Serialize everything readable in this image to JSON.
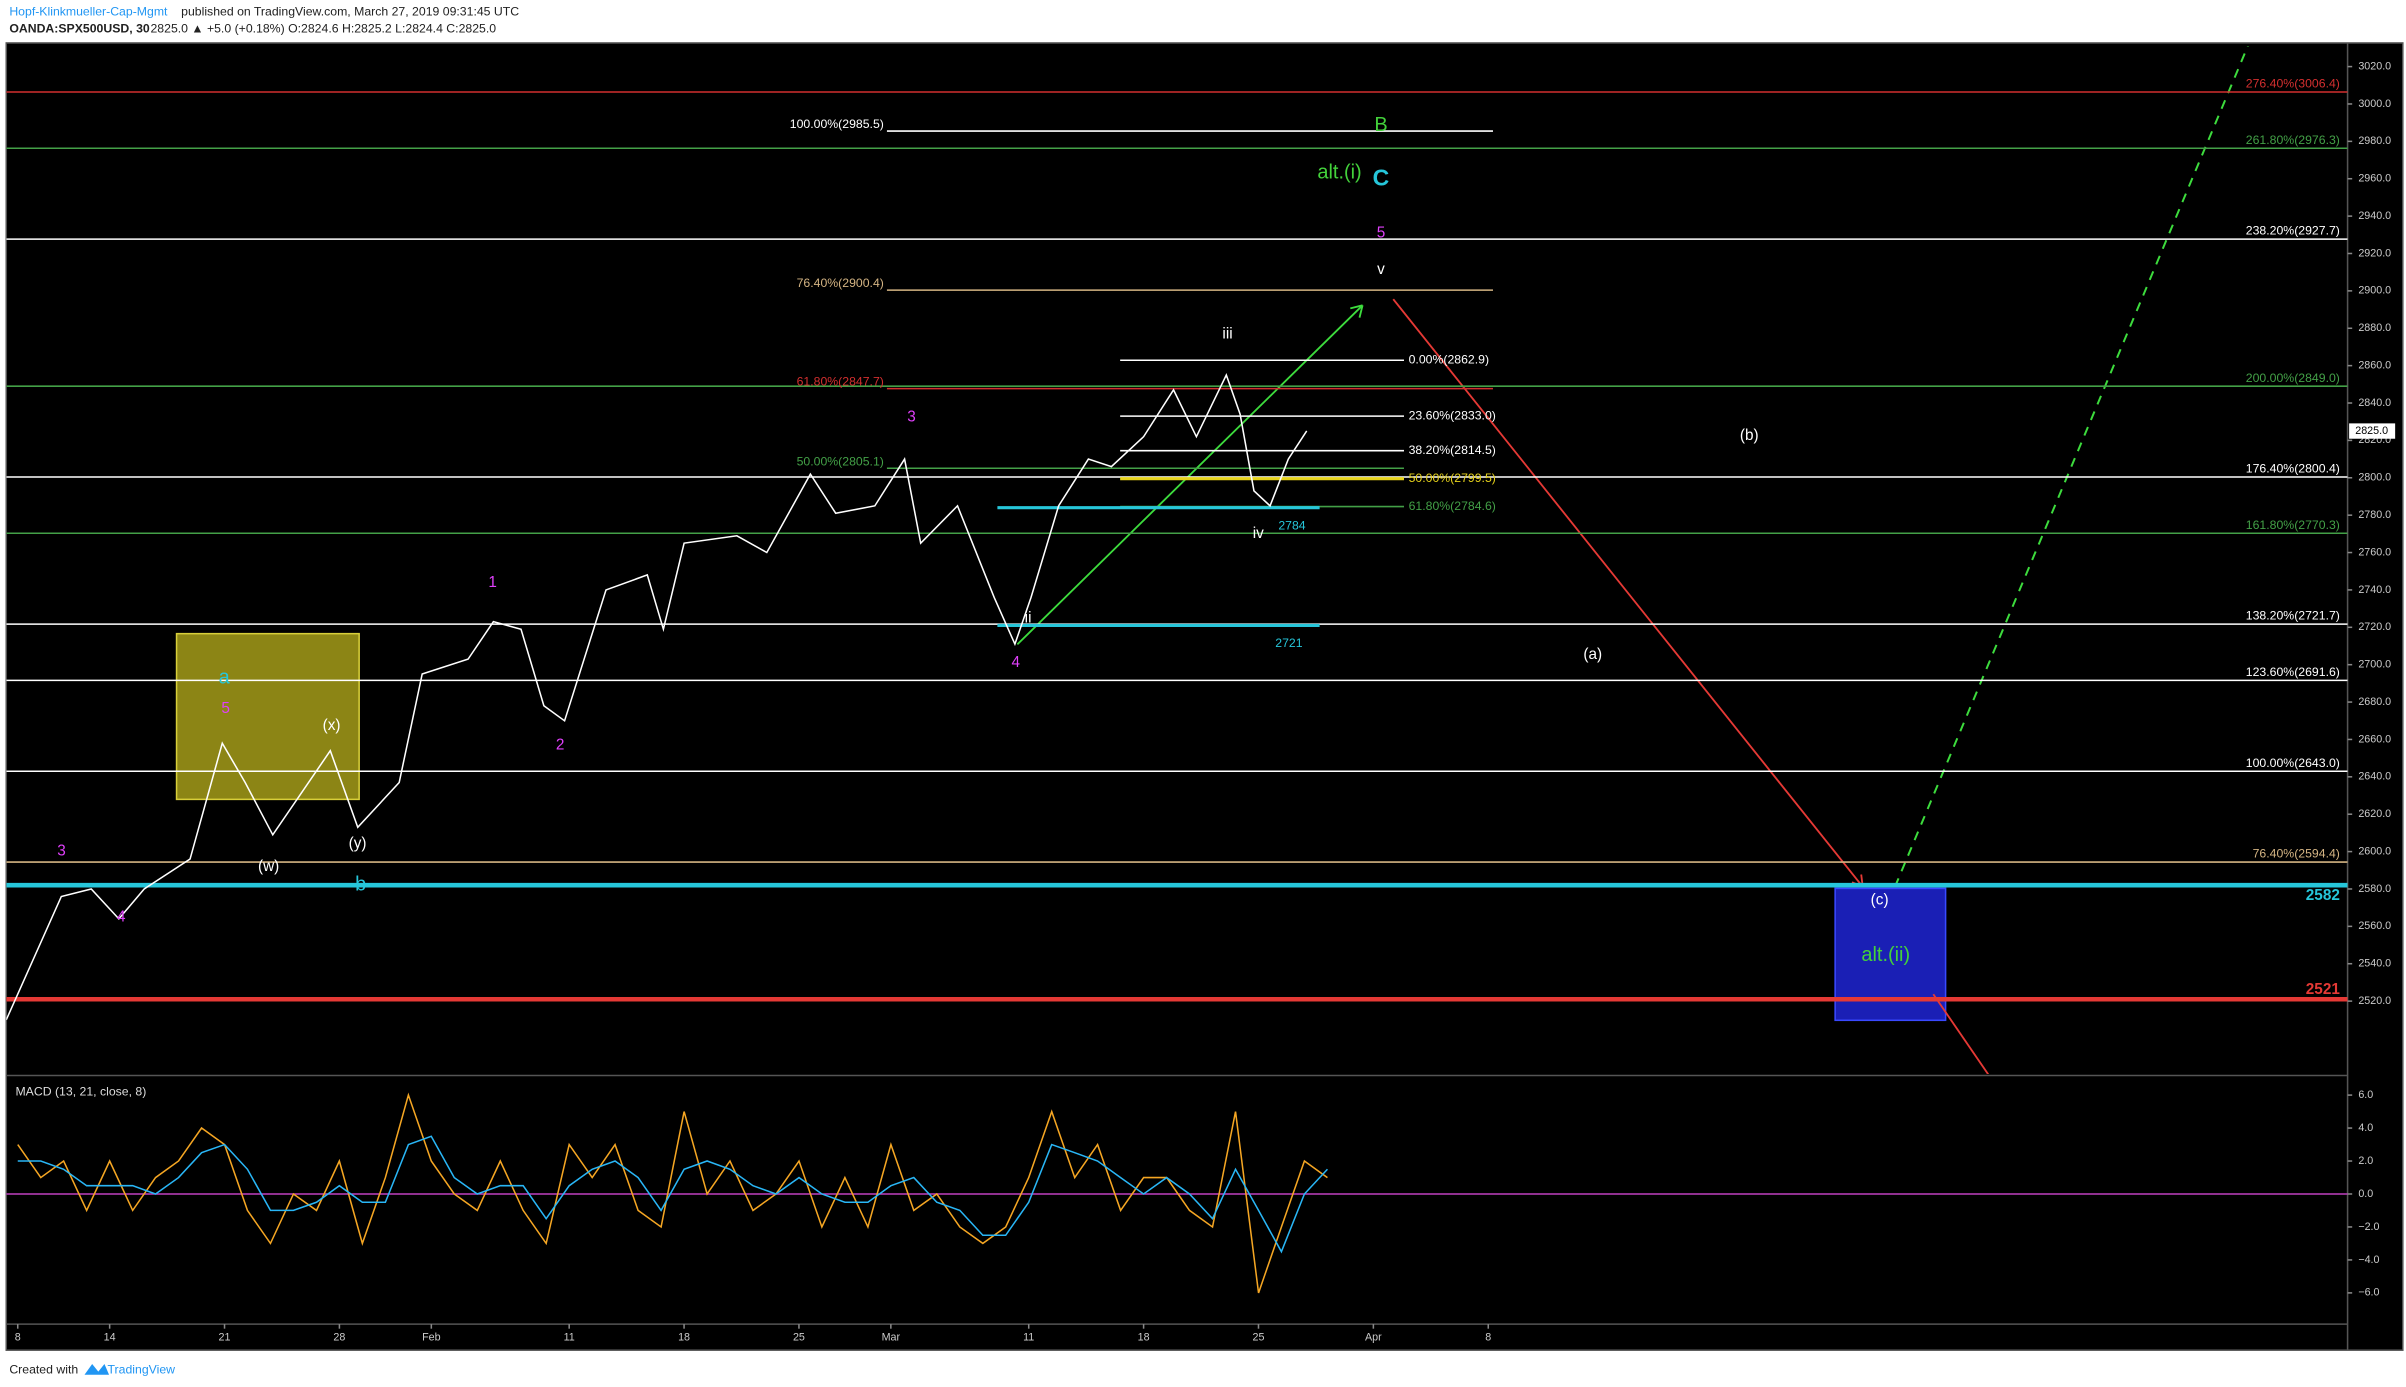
{
  "header": {
    "author": "Hopf-Klinkmueller-Cap-Mgmt",
    "published": "published on TradingView.com, March 27, 2019 09:31:45 UTC",
    "symbol": "OANDA:SPX500USD, 30",
    "ohlc": "2825.0  ▲ +5.0 (+0.18%)  O:2824.6  H:2825.2  L:2824.4  C:2825.0"
  },
  "footer": {
    "created": "Created with",
    "brand": "TradingView"
  },
  "chart_data": [
    {
      "type": "line",
      "color": "#ffffff",
      "x": [
        -0.5,
        1.9,
        3.2,
        4.4,
        5.5,
        7.5,
        8.9,
        9.9,
        11.1,
        13.6,
        14.8,
        16.6,
        17.6,
        19.6,
        20.7,
        21.9,
        22.9,
        23.8,
        25.6,
        27.4,
        28.1,
        29.0,
        31.3,
        32.6,
        34.5,
        35.6,
        37.3,
        38.6,
        39.3,
        40.9,
        42.5,
        43.4,
        44.1,
        45.3,
        46.6,
        47.6,
        49.0,
        50.3,
        51.3,
        52.6,
        53.2,
        53.8,
        54.5,
        55.3,
        56.1
      ],
      "values": [
        2510,
        2576,
        2580,
        2564,
        2580,
        2596,
        2658,
        2637,
        2609,
        2654,
        2613,
        2637,
        2695,
        2703,
        2723,
        2719,
        2678,
        2670,
        2740,
        2748,
        2719,
        2765,
        2769,
        2760,
        2802,
        2781,
        2785,
        2810,
        2765,
        2785,
        2736,
        2711,
        2736,
        2785,
        2810,
        2806,
        2822,
        2847,
        2822,
        2855,
        2834,
        2793,
        2785,
        2810,
        2825
      ],
      "xlim": [
        -0.5,
        101.4
      ],
      "ylim": [
        2481,
        3031
      ],
      "yticks": [
        {
          "value": 2520,
          "label": "2520.0"
        },
        {
          "value": 2540,
          "label": "2540.0"
        },
        {
          "value": 2560,
          "label": "2560.0"
        },
        {
          "value": 2580,
          "label": "2580.0"
        },
        {
          "value": 2600,
          "label": "2600.0"
        },
        {
          "value": 2620,
          "label": "2620.0"
        },
        {
          "value": 2640,
          "label": "2640.0"
        },
        {
          "value": 2660,
          "label": "2660.0"
        },
        {
          "value": 2680,
          "label": "2680.0"
        },
        {
          "value": 2700,
          "label": "2700.0"
        },
        {
          "value": 2720,
          "label": "2720.0"
        },
        {
          "value": 2740,
          "label": "2740.0"
        },
        {
          "value": 2760,
          "label": "2760.0"
        },
        {
          "value": 2780,
          "label": "2780.0"
        },
        {
          "value": 2800,
          "label": "2800.0"
        },
        {
          "value": 2820,
          "label": "2820.0"
        },
        {
          "value": 2840,
          "label": "2840.0"
        },
        {
          "value": 2860,
          "label": "2860.0"
        },
        {
          "value": 2880,
          "label": "2880.0"
        },
        {
          "value": 2900,
          "label": "2900.0"
        },
        {
          "value": 2920,
          "label": "2920.0"
        },
        {
          "value": 2940,
          "label": "2940.0"
        },
        {
          "value": 2960,
          "label": "2960.0"
        },
        {
          "value": 2980,
          "label": "2980.0"
        },
        {
          "value": 3000,
          "label": "3000.0"
        },
        {
          "value": 3020,
          "label": "3020.0"
        }
      ],
      "last_price": {
        "value": 2825,
        "label": "2825.0"
      },
      "levels": [
        {
          "value": 3006.4,
          "label": "276.40%(3006.4)",
          "color": "#d32f2f"
        },
        {
          "value": 2976.3,
          "label": "261.80%(2976.3)",
          "color": "#43a047"
        },
        {
          "value": 2927.7,
          "label": "238.20%(2927.7)",
          "color": "#ffffff"
        },
        {
          "value": 2849.0,
          "label": "200.00%(2849.0)",
          "color": "#43a047"
        },
        {
          "value": 2800.4,
          "label": "176.40%(2800.4)",
          "color": "#ffffff"
        },
        {
          "value": 2770.3,
          "label": "161.80%(2770.3)",
          "color": "#43a047"
        },
        {
          "value": 2721.7,
          "label": "138.20%(2721.7)",
          "color": "#ffffff"
        },
        {
          "value": 2691.6,
          "label": "123.60%(2691.6)",
          "color": "#ffffff"
        },
        {
          "value": 2643.0,
          "label": "100.00%(2643.0)",
          "color": "#ffffff"
        },
        {
          "value": 2594.4,
          "label": "76.40%(2594.4)",
          "color": "#d4b483"
        },
        {
          "value": 2985.5,
          "label": "100.00%(2985.5)",
          "color": "#ffffff"
        },
        {
          "value": 2900.4,
          "label": "76.40%(2900.4)",
          "color": "#d4b483"
        },
        {
          "value": 2847.7,
          "label": "61.80%(2847.7)",
          "color": "#d32f2f"
        },
        {
          "value": 2805.1,
          "label": "50.00%(2805.1)",
          "color": "#43a047"
        },
        {
          "value": 2862.9,
          "label": "0.00%(2862.9)",
          "color": "#ffffff"
        },
        {
          "value": 2833.0,
          "label": "23.60%(2833.0)",
          "color": "#ffffff"
        },
        {
          "value": 2814.5,
          "label": "38.20%(2814.5)",
          "color": "#ffffff"
        },
        {
          "value": 2799.5,
          "label": "50.00%(2799.5)",
          "color": "#e6d21a"
        },
        {
          "value": 2784.6,
          "label": "61.80%(2784.6)",
          "color": "#43a047"
        },
        {
          "value": 2784,
          "label": "2784",
          "color": "#26c6da"
        },
        {
          "value": 2721,
          "label": "2721",
          "color": "#26c6da"
        },
        {
          "value": 2582,
          "label": "2582",
          "color": "#26c6da"
        },
        {
          "value": 2521,
          "label": "2521",
          "color": "#e53935"
        }
      ],
      "annotations": [
        {
          "text": "3",
          "color": "#e040fb"
        },
        {
          "text": "4",
          "color": "#e040fb"
        },
        {
          "text": "a",
          "color": "#26c6da"
        },
        {
          "text": "5",
          "color": "#e040fb"
        },
        {
          "text": "(x)",
          "color": "#ffffff"
        },
        {
          "text": "(w)",
          "color": "#ffffff"
        },
        {
          "text": "(y)",
          "color": "#ffffff"
        },
        {
          "text": "b",
          "color": "#26c6da"
        },
        {
          "text": "1",
          "color": "#e040fb"
        },
        {
          "text": "2",
          "color": "#e040fb"
        },
        {
          "text": "3",
          "color": "#e040fb"
        },
        {
          "text": "4",
          "color": "#e040fb"
        },
        {
          "text": "ii",
          "color": "#ffffff"
        },
        {
          "text": "iii",
          "color": "#ffffff"
        },
        {
          "text": "iv",
          "color": "#ffffff"
        },
        {
          "text": "v",
          "color": "#ffffff"
        },
        {
          "text": "5",
          "color": "#e040fb"
        },
        {
          "text": "C",
          "color": "#26c6da"
        },
        {
          "text": "alt.(i)",
          "color": "#43d13b"
        },
        {
          "text": "B",
          "color": "#43d13b"
        },
        {
          "text": "(b)",
          "color": "#ffffff"
        },
        {
          "text": "(a)",
          "color": "#ffffff"
        },
        {
          "text": "(c)",
          "color": "#ffffff"
        },
        {
          "text": "alt.(ii)",
          "color": "#43d13b"
        }
      ]
    },
    {
      "type": "line",
      "title": "MACD (13, 21, close, 8)",
      "x": [
        0,
        1,
        2,
        3,
        4,
        5,
        6,
        7,
        8,
        9,
        10,
        11,
        12,
        13,
        14,
        15,
        16,
        17,
        18,
        19,
        20,
        21,
        22,
        23,
        24,
        25,
        26,
        27,
        28,
        29,
        30,
        31,
        32,
        33,
        34,
        35,
        36,
        37,
        38,
        39,
        40,
        41,
        42,
        43,
        44,
        45,
        46,
        47,
        48,
        49,
        50,
        51,
        52,
        53,
        54,
        55,
        56,
        57
      ],
      "series": [
        {
          "color": "#f5a623",
          "values": [
            3,
            1,
            2,
            -1,
            2,
            -1,
            1,
            2,
            4,
            3,
            -1,
            -3,
            0,
            -1,
            2,
            -3,
            1,
            6,
            2,
            0,
            -1,
            2,
            -1,
            -3,
            3,
            1,
            3,
            -1,
            -2,
            5,
            0,
            2,
            -1,
            0,
            2,
            -2,
            1,
            -2,
            3,
            -1,
            0,
            -2,
            -3,
            -2,
            1,
            5,
            1,
            3,
            -1,
            1,
            1,
            -1,
            -2,
            5,
            -6,
            -2,
            2,
            1
          ]
        },
        {
          "color": "#29b6f6",
          "values": [
            2,
            2,
            1.5,
            0.5,
            0.5,
            0.5,
            0,
            1,
            2.5,
            3,
            1.5,
            -1,
            -1,
            -0.5,
            0.5,
            -0.5,
            -0.5,
            3,
            3.5,
            1,
            0,
            0.5,
            0.5,
            -1.5,
            0.5,
            1.5,
            2,
            1,
            -1,
            1.5,
            2,
            1.5,
            0.5,
            0,
            1,
            0,
            -0.5,
            -0.5,
            0.5,
            1,
            -0.5,
            -1,
            -2.5,
            -2.5,
            -0.5,
            3,
            2.5,
            2,
            1,
            0,
            1,
            0,
            -1.5,
            1.5,
            -1,
            -3.5,
            0,
            1.5
          ]
        }
      ],
      "zero_line_color": "#c040c0",
      "xlim": [
        -0.5,
        101.4
      ],
      "ylim": [
        -7.8,
        7.0
      ],
      "yticks": [
        {
          "value": 6,
          "label": "6.0"
        },
        {
          "value": 4,
          "label": "4.0"
        },
        {
          "value": 2,
          "label": "2.0"
        },
        {
          "value": 0,
          "label": "0.0"
        },
        {
          "value": -2,
          "label": "−2.0"
        },
        {
          "value": -4,
          "label": "−4.0"
        },
        {
          "value": -6,
          "label": "−6.0"
        }
      ],
      "xticks": [
        {
          "value": 0,
          "label": "8"
        },
        {
          "value": 4,
          "label": "14"
        },
        {
          "value": 9,
          "label": "21"
        },
        {
          "value": 14,
          "label": "28"
        },
        {
          "value": 18,
          "label": "Feb"
        },
        {
          "value": 24,
          "label": "11"
        },
        {
          "value": 29,
          "label": "18"
        },
        {
          "value": 34,
          "label": "25"
        },
        {
          "value": 38,
          "label": "Mar"
        },
        {
          "value": 44,
          "label": "11"
        },
        {
          "value": 49,
          "label": "18"
        },
        {
          "value": 54,
          "label": "25"
        },
        {
          "value": 59,
          "label": "Apr"
        },
        {
          "value": 64,
          "label": "8"
        }
      ]
    }
  ]
}
